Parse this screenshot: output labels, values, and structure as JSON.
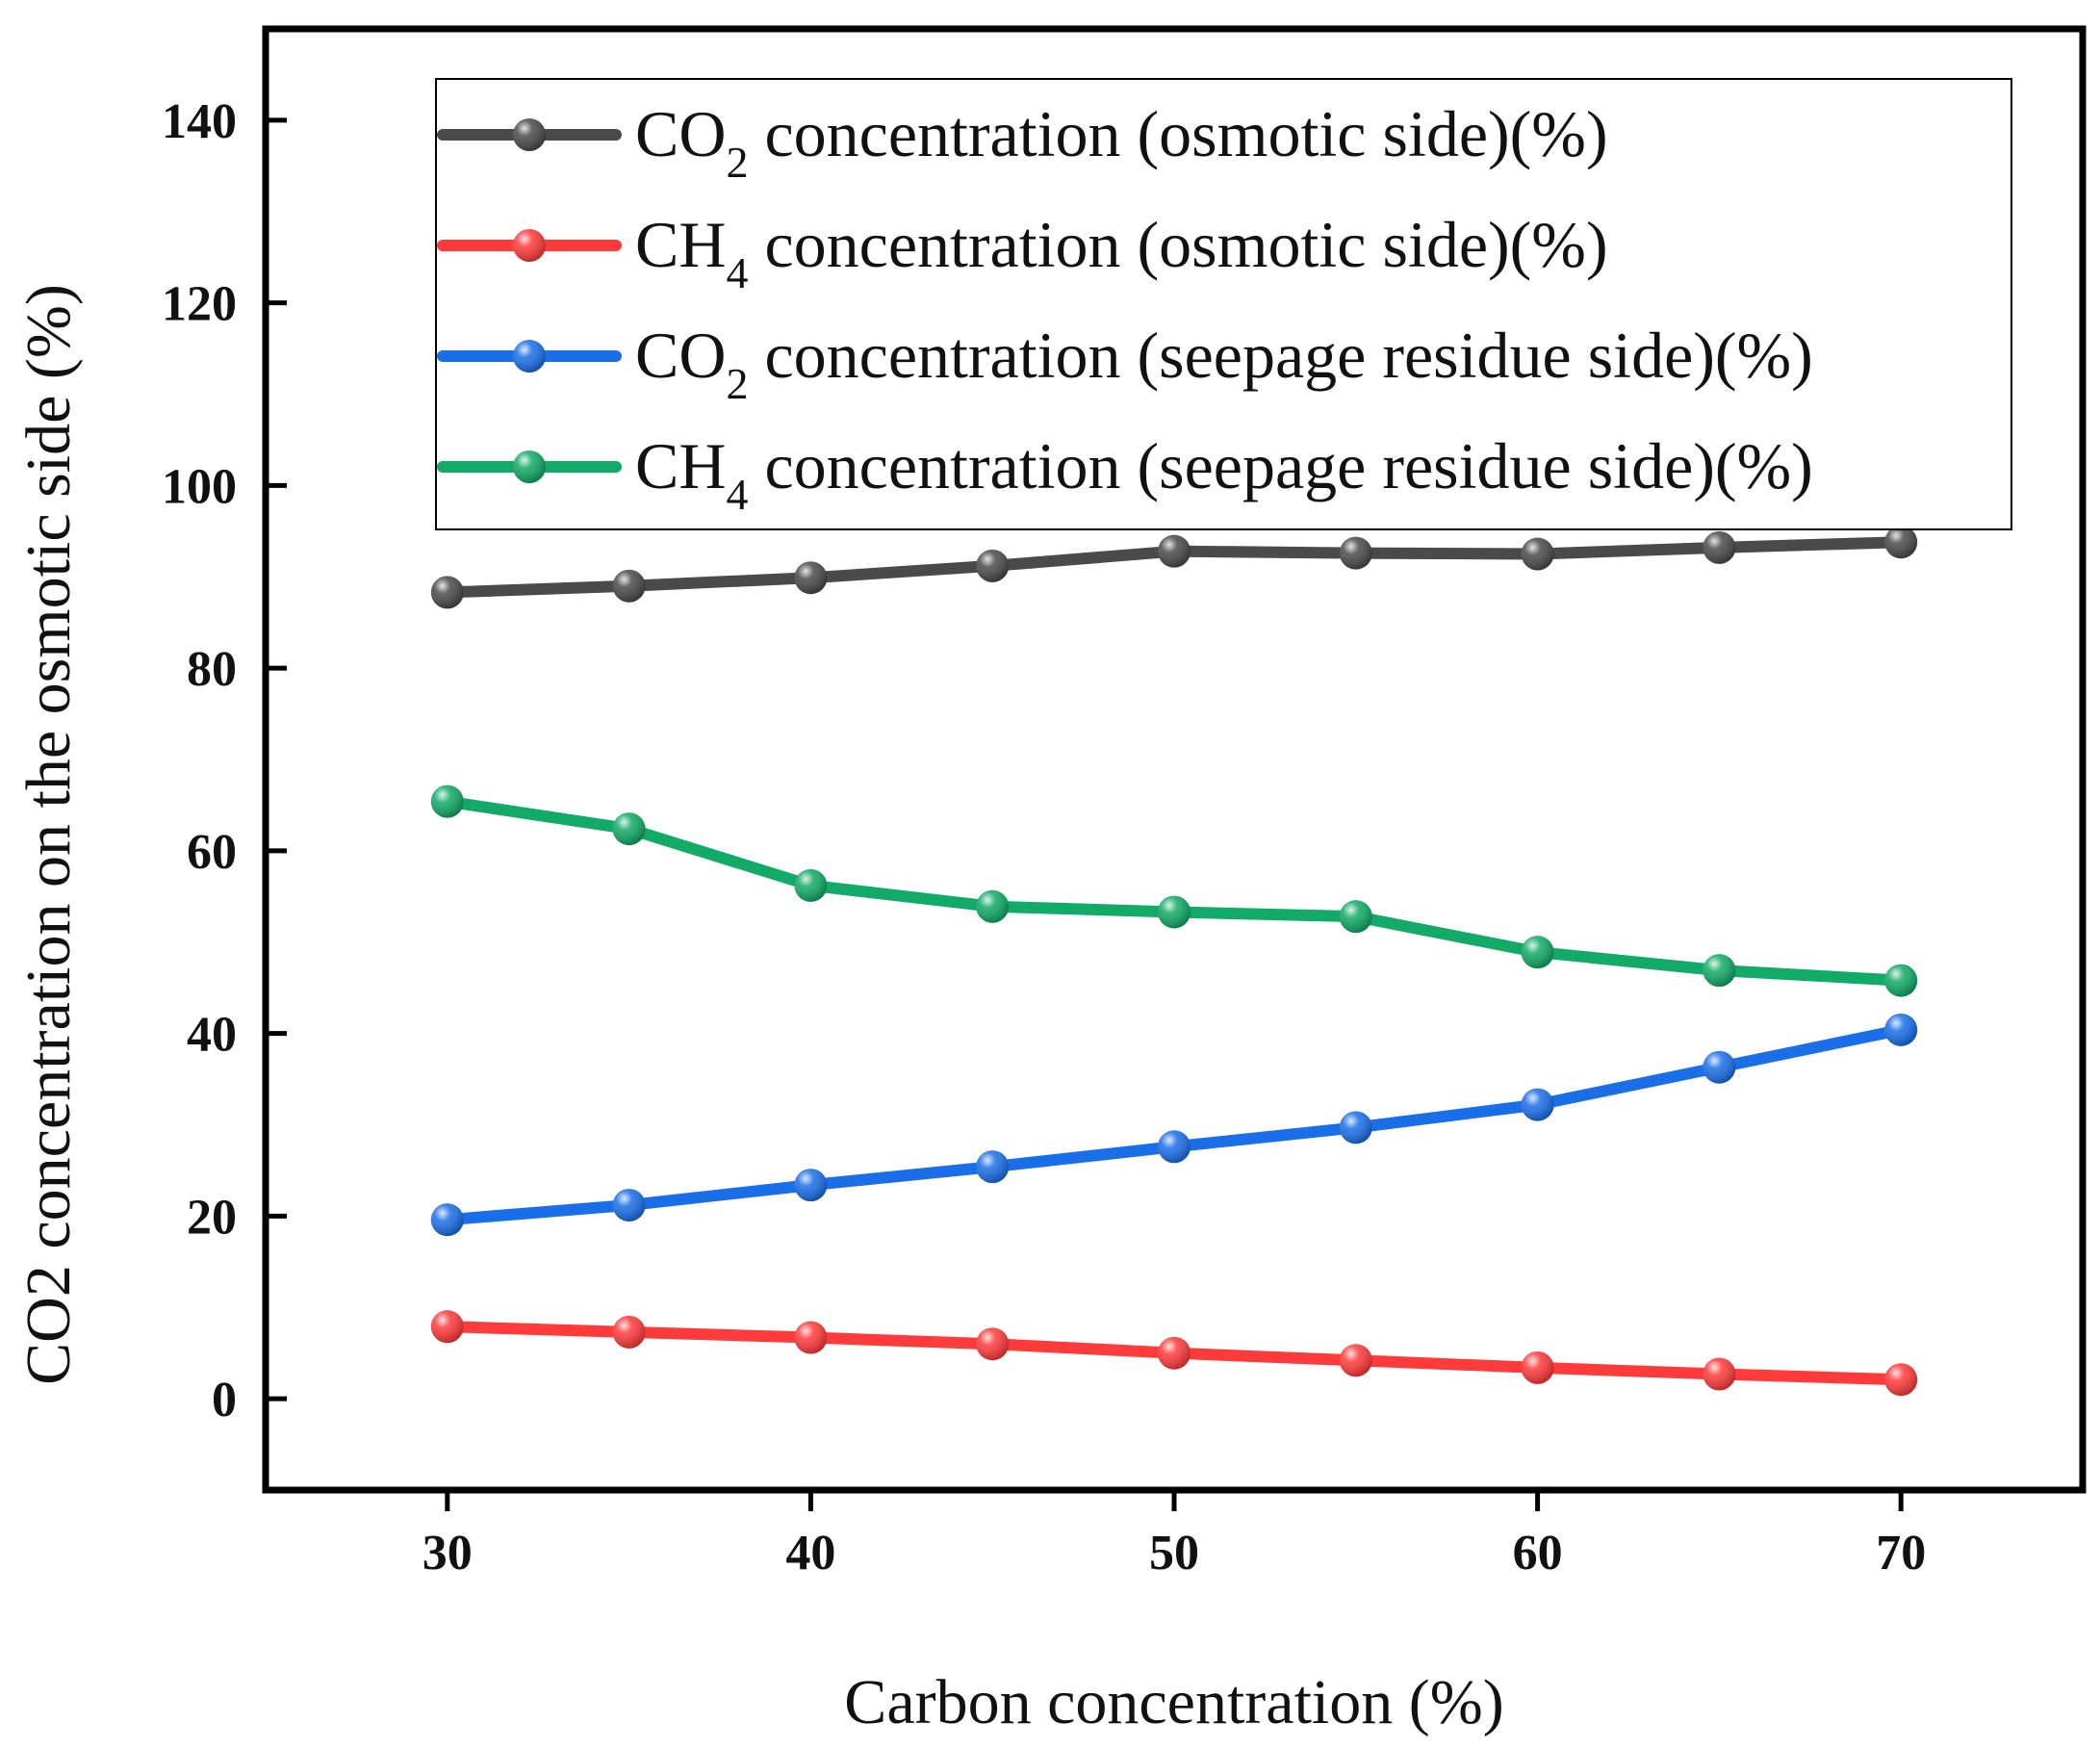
{
  "chart_data": {
    "type": "line",
    "title": "",
    "xlabel": "Carbon concentration (%)",
    "ylabel": "CO2 concentration on the osmotic side (%)",
    "xlim": [
      25,
      75
    ],
    "ylim": [
      -10,
      150
    ],
    "xticks": [
      30,
      40,
      50,
      60,
      70
    ],
    "yticks": [
      0,
      20,
      40,
      60,
      80,
      100,
      120,
      140
    ],
    "grid": false,
    "legend_position": "top-right",
    "x": [
      30,
      35,
      40,
      45,
      50,
      55,
      60,
      65,
      70
    ],
    "series": [
      {
        "name": "CO2 concentration (osmotic side)(%)",
        "legend": {
          "prefix": "CO",
          "sub": "2",
          "suffix": " concentration (osmotic side)(%)"
        },
        "color": "#4a4a4a",
        "values": [
          88.3,
          89.0,
          89.9,
          91.2,
          92.8,
          92.6,
          92.5,
          93.2,
          93.8
        ]
      },
      {
        "name": "CH4 concentration (osmotic side)(%)",
        "legend": {
          "prefix": "CH",
          "sub": "4",
          "suffix": " concentration (osmotic side)(%)"
        },
        "color": "#ff3a3a",
        "values": [
          7.9,
          7.3,
          6.7,
          6.0,
          5.0,
          4.2,
          3.4,
          2.7,
          2.1
        ]
      },
      {
        "name": "CO2 concentration (seepage residue side)(%)",
        "legend": {
          "prefix": "CO",
          "sub": "2",
          "suffix": " concentration (seepage residue side)(%)"
        },
        "color": "#1a6fe8",
        "values": [
          19.6,
          21.2,
          23.4,
          25.4,
          27.6,
          29.7,
          32.2,
          36.3,
          40.4
        ]
      },
      {
        "name": "CH4 concentration (seepage residue side)(%)",
        "legend": {
          "prefix": "CH",
          "sub": "4",
          "suffix": " concentration (seepage residue side)(%)"
        },
        "color": "#11aa66",
        "values": [
          65.4,
          62.4,
          56.2,
          53.9,
          53.3,
          52.8,
          48.9,
          46.9,
          45.8
        ]
      }
    ]
  }
}
